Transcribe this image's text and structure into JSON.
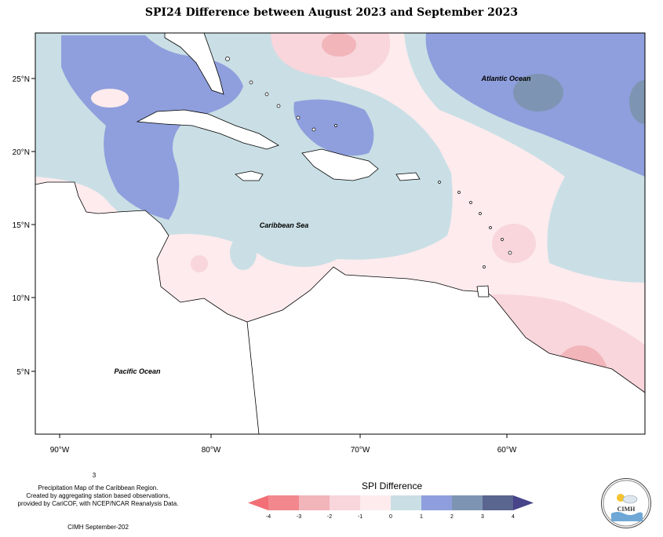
{
  "title": "SPI24 Difference between August 2023 and September 2023",
  "axes": {
    "x_ticks": [
      "90°W",
      "80°W",
      "70°W",
      "60°W"
    ],
    "y_ticks": [
      "25°N",
      "20°N",
      "15°N",
      "10°N",
      "5°N"
    ]
  },
  "labels": {
    "atlantic": "Atlantic Ocean",
    "caribbean": "Caribbean Sea",
    "pacific": "Pacific Ocean"
  },
  "credits": {
    "footnote_num": "3",
    "line1": "Precipitation Map of the Caribbean Region.",
    "line2": "Created by aggregating station based observations,",
    "line3": "provided by CariCOF, with NCEP/NCAR Reanalysis Data.",
    "line4": "CIMH September-202"
  },
  "legend": {
    "title": "SPI Difference",
    "ticks": [
      "-4",
      "-3",
      "-2",
      "-1",
      "0",
      "1",
      "2",
      "3",
      "4"
    ],
    "colors": [
      "#f2888e",
      "#f1b5ba",
      "#f8d6db",
      "#fdebed",
      "#c9dfe5",
      "#8f9fdd",
      "#7d95b2",
      "#5a6590"
    ],
    "under_color": "#f26f76",
    "over_color": "#47448a"
  },
  "logo": {
    "text": "CIMH"
  },
  "colors": {
    "land": "#ffffff",
    "coast": "#000000"
  }
}
